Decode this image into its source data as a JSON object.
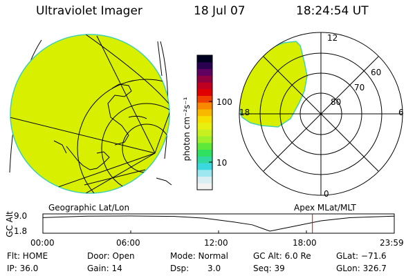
{
  "header": {
    "title": "Ultraviolet Imager",
    "date": "18 Jul 07",
    "time": "18:24:54 UT"
  },
  "colorbar": {
    "unit_label": "photon cm⁻²s⁻¹",
    "tick_high": "100",
    "tick_low": "10",
    "colors": [
      "#f2f2f2",
      "#d9eef2",
      "#9ee6f0",
      "#3cd8e0",
      "#2fd9a0",
      "#30e060",
      "#5ee83a",
      "#9ef02a",
      "#c8f020",
      "#e8f010",
      "#f5e000",
      "#f8b800",
      "#f88800",
      "#f04000",
      "#e00000",
      "#c00020",
      "#900040",
      "#600060",
      "#2a0050",
      "#000020"
    ],
    "fill_color": "#d8f000",
    "edge_color": "#40d0b0"
  },
  "polar_plot": {
    "lat_labels": [
      "80",
      "70",
      "60"
    ],
    "mlt_labels": {
      "top": "12",
      "bottom": "0",
      "left": "18",
      "right": "6"
    }
  },
  "timeline": {
    "left_title": "Geographic Lat/Lon",
    "right_title": "Apex  MLat/MLT",
    "axis_title": "GC Alt",
    "y_top": "9.0",
    "y_bottom": "1.8",
    "x_ticks": [
      "00:00",
      "06:00",
      "12:00",
      "18:00",
      "23:59"
    ],
    "marker_time_hours": 18.41,
    "marker_color": "#e00000",
    "orbit_curve": {
      "hours": [
        0,
        3,
        6,
        9,
        11,
        13,
        14.3,
        15.5,
        17,
        19,
        21,
        23.98
      ],
      "alt": [
        8.2,
        8.9,
        9.0,
        8.8,
        8.0,
        6.2,
        4.8,
        1.8,
        3.9,
        6.7,
        8.2,
        8.9
      ]
    }
  },
  "info": {
    "flt": "Flt: HOME",
    "ip": "IP: 36.0",
    "door": "Door: Open",
    "gain": "Gain: 14",
    "mode": "Mode: Normal",
    "dsp_label": "Dsp:",
    "dsp_value": "3.0",
    "gc_alt": "GC Alt: 6.0 Re",
    "seq": "Seq: 39",
    "glat": "GLat: −71.6",
    "glon": "GLon: 326.7"
  }
}
